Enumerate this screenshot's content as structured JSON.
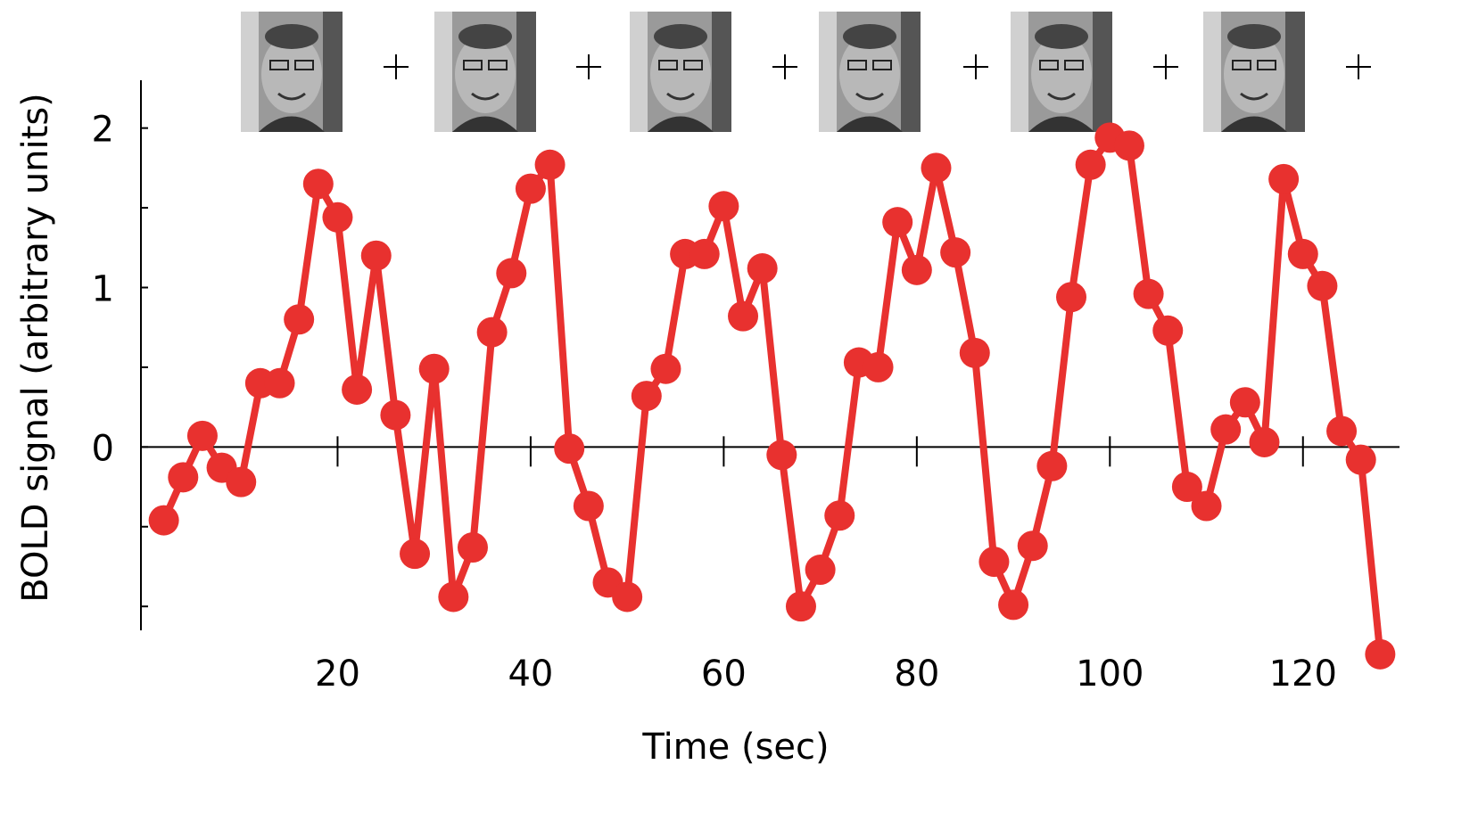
{
  "chart_data": {
    "type": "line",
    "xlabel": "Time (sec)",
    "ylabel": "BOLD signal (arbitrary units)",
    "x": [
      2,
      4,
      6,
      8,
      10,
      12,
      14,
      16,
      18,
      20,
      22,
      24,
      26,
      28,
      30,
      32,
      34,
      36,
      38,
      40,
      42,
      44,
      46,
      48,
      50,
      52,
      54,
      56,
      58,
      60,
      62,
      64,
      66,
      68,
      70,
      72,
      74,
      76,
      78,
      80,
      82,
      84,
      86,
      88,
      90,
      92,
      94,
      96,
      98,
      100,
      102,
      104,
      106,
      108,
      110,
      112,
      114,
      116,
      118,
      120,
      122,
      124,
      126,
      128
    ],
    "values": [
      -0.46,
      -0.19,
      0.07,
      -0.13,
      -0.22,
      0.4,
      0.4,
      0.8,
      1.65,
      1.44,
      0.36,
      1.2,
      0.2,
      -0.67,
      0.49,
      -0.94,
      -0.63,
      0.72,
      1.09,
      1.62,
      1.77,
      -0.01,
      -0.37,
      -0.85,
      -0.94,
      0.32,
      0.49,
      1.21,
      1.21,
      1.51,
      0.82,
      1.12,
      -0.05,
      -1.0,
      -0.77,
      -0.43,
      0.53,
      0.5,
      1.41,
      1.11,
      1.75,
      1.22,
      0.59,
      -0.72,
      -0.99,
      -0.62,
      -0.12,
      0.94,
      1.77,
      1.94,
      1.89,
      0.96,
      0.73,
      -0.25,
      -0.37,
      0.11,
      0.28,
      0.03,
      1.68,
      1.21,
      1.01,
      0.1,
      -0.08,
      -1.3
    ],
    "color": "#e8312f",
    "xlim": [
      0,
      130
    ],
    "xticks": [
      20,
      40,
      60,
      80,
      100,
      120
    ],
    "ylim": [
      -1.15,
      2.3
    ],
    "yticks": [
      0,
      1,
      2
    ],
    "yminorticks": [
      -1,
      -0.5,
      0.5,
      1.5
    ]
  }
}
